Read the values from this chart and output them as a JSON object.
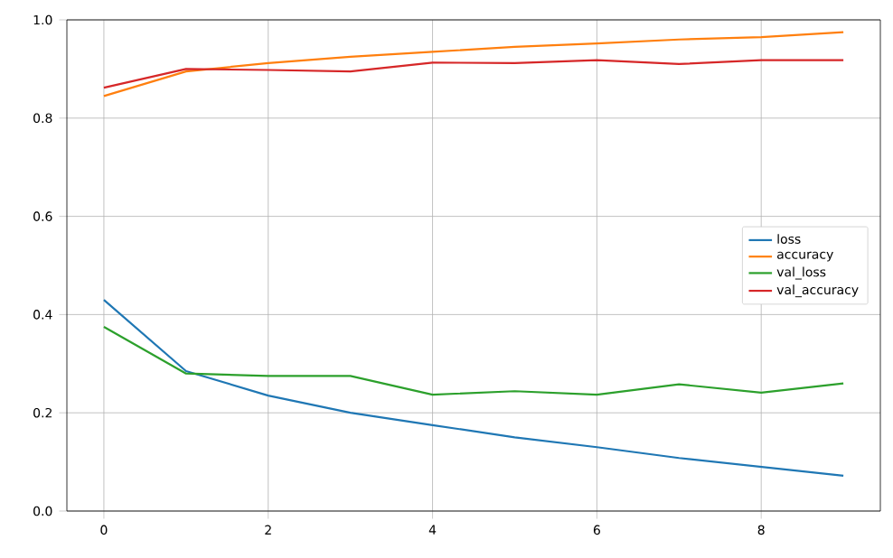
{
  "chart_data": {
    "type": "line",
    "x": [
      0,
      1,
      2,
      3,
      4,
      5,
      6,
      7,
      8,
      9
    ],
    "series": [
      {
        "name": "loss",
        "color": "#1f77b4",
        "values": [
          0.43,
          0.285,
          0.235,
          0.2,
          0.175,
          0.15,
          0.13,
          0.108,
          0.09,
          0.072
        ]
      },
      {
        "name": "accuracy",
        "color": "#ff7f0e",
        "values": [
          0.845,
          0.895,
          0.912,
          0.925,
          0.935,
          0.945,
          0.952,
          0.96,
          0.965,
          0.975
        ]
      },
      {
        "name": "val_loss",
        "color": "#2ca02c",
        "values": [
          0.375,
          0.28,
          0.275,
          0.275,
          0.237,
          0.244,
          0.237,
          0.258,
          0.241,
          0.26
        ]
      },
      {
        "name": "val_accuracy",
        "color": "#d62728",
        "values": [
          0.862,
          0.9,
          0.898,
          0.895,
          0.913,
          0.912,
          0.918,
          0.91,
          0.918,
          0.918
        ]
      }
    ],
    "xlim": [
      -0.45,
      9.45
    ],
    "ylim": [
      0,
      1
    ],
    "xticks": [
      0,
      2,
      4,
      6,
      8
    ],
    "yticks": [
      {
        "value": 0,
        "label": "0.0"
      },
      0.2,
      0.4,
      0.6,
      0.8,
      {
        "value": 1,
        "label": "1.0"
      }
    ],
    "grid": true,
    "legend": "right"
  }
}
